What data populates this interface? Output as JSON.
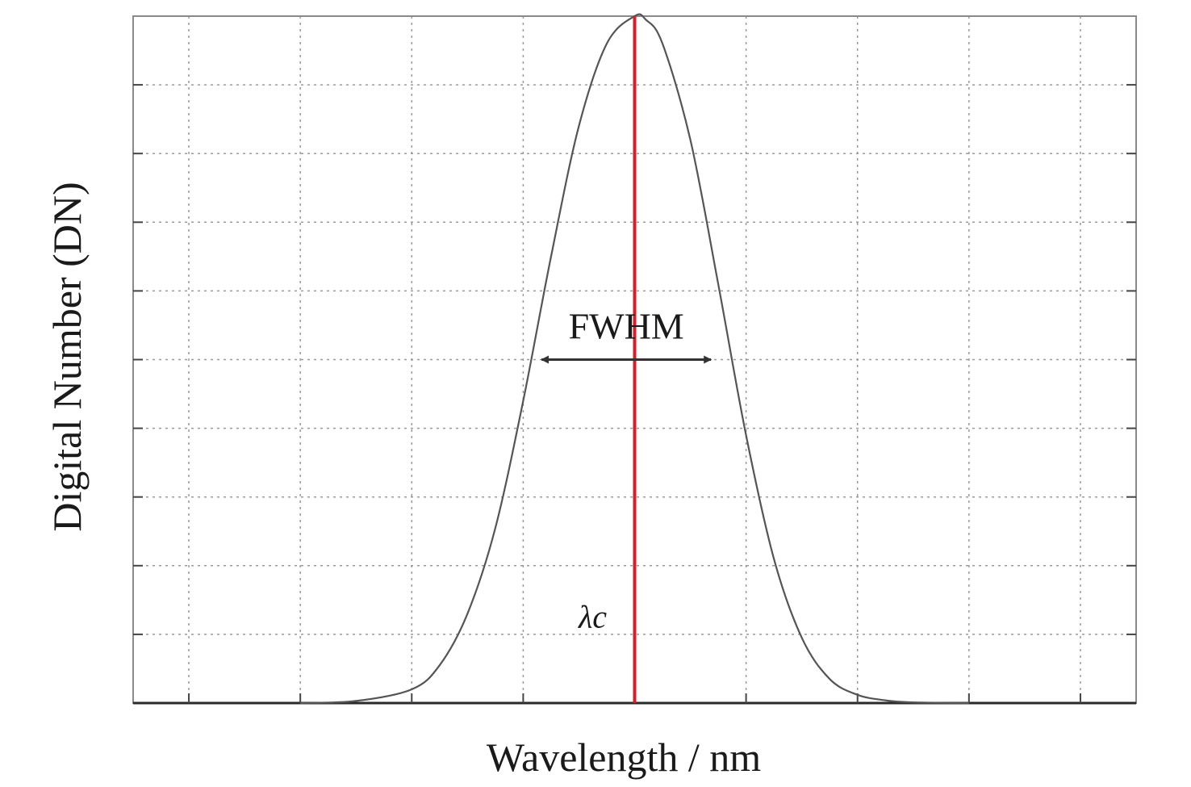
{
  "chart_data": {
    "type": "line",
    "title": "",
    "xlabel": "Wavelength / nm",
    "ylabel": "Digital Number (DN)",
    "x_tick_labels": [],
    "y_tick_labels": [],
    "grid": true,
    "xlim": [
      0,
      9
    ],
    "ylim": [
      0,
      10
    ],
    "x_gridlines": [
      0.5,
      1.5,
      2.5,
      3.5,
      4.5,
      5.5,
      6.5,
      7.5,
      8.5
    ],
    "y_gridlines": [
      1,
      2,
      3,
      4,
      5,
      6,
      7,
      8,
      9
    ],
    "series": [
      {
        "color": "#555555",
        "x": [
          1.5,
          2.0,
          2.5,
          2.75,
          3.0,
          3.25,
          3.5,
          3.75,
          4.0,
          4.25,
          4.5,
          4.6,
          4.75,
          5.0,
          5.25,
          5.5,
          5.75,
          6.0,
          6.25,
          6.5,
          6.75,
          7.0,
          7.5
        ],
        "y": [
          0.0,
          0.03,
          0.2,
          0.55,
          1.3,
          2.55,
          4.4,
          6.5,
          8.4,
          9.6,
          10.0,
          9.95,
          9.6,
          8.2,
          6.1,
          3.9,
          2.1,
          0.95,
          0.35,
          0.12,
          0.04,
          0.01,
          0.0
        ]
      }
    ],
    "annotations": {
      "fwhm": {
        "label": "FWHM",
        "x_start": 3.65,
        "x_end": 5.2,
        "y": 5.0,
        "color": "#333333"
      },
      "center": {
        "label": "λc",
        "x": 4.5,
        "color": "#d1202a"
      }
    }
  }
}
